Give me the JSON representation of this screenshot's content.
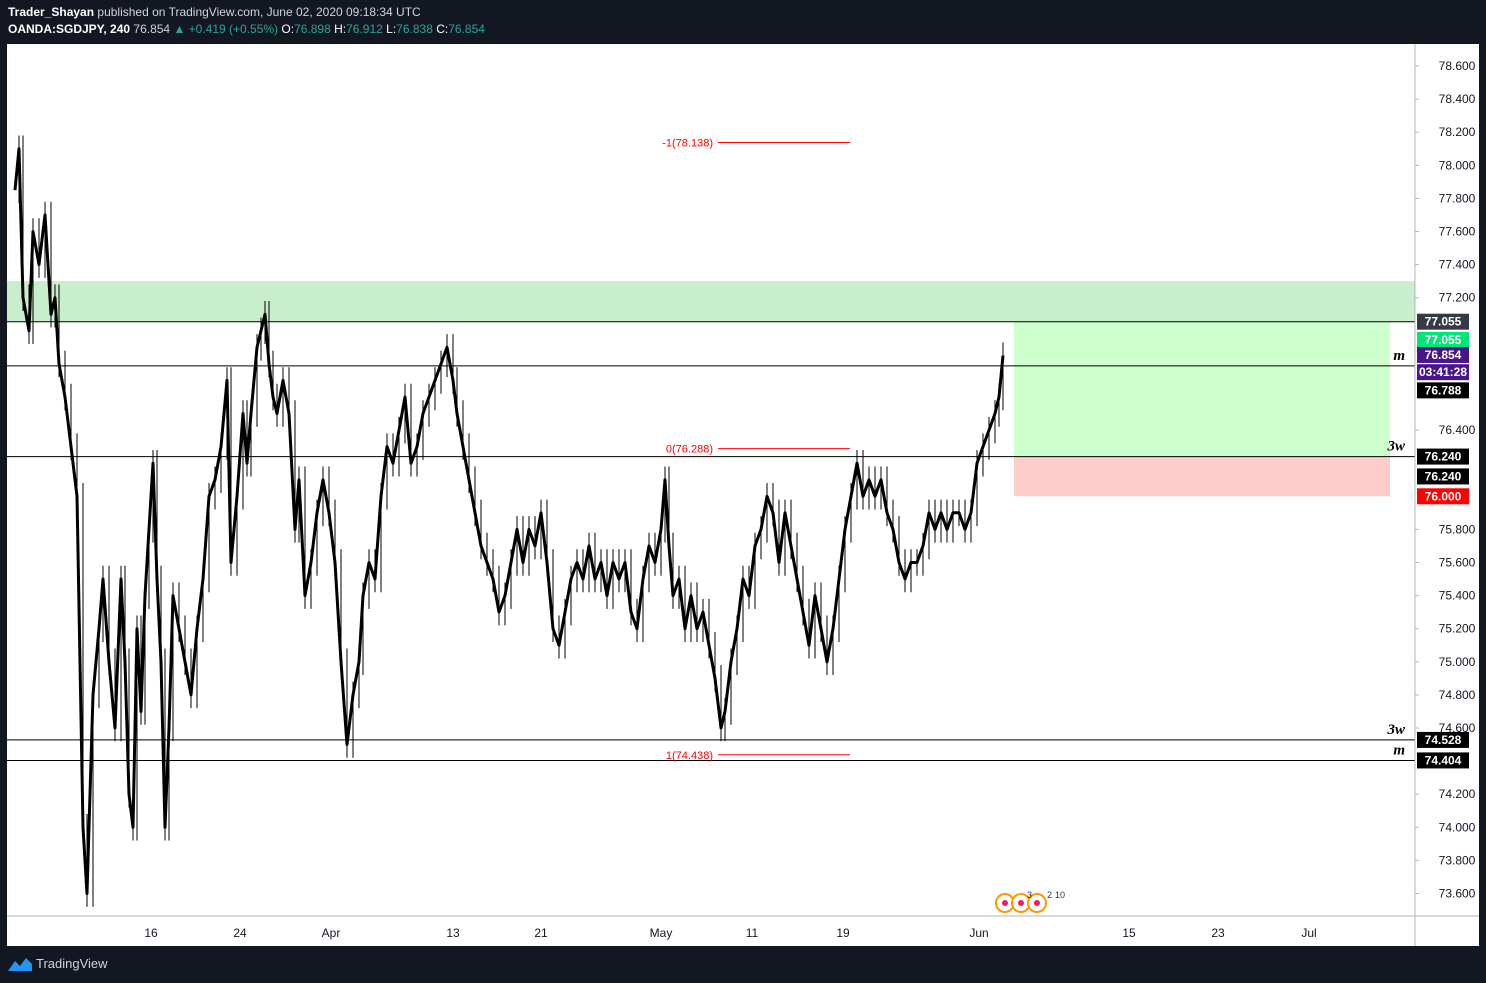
{
  "header": {
    "author": "Trader_Shayan",
    "published": "published on TradingView.com, June 02, 2020 09:18:34 UTC",
    "symbol": "OANDA:SGDJPY, 240",
    "last": "76.854",
    "change": "▲ +0.419 (+0.55%)",
    "o_label": "O:",
    "o_value": "76.898",
    "h_label": "H:",
    "h_value": "76.912",
    "l_label": "L:",
    "l_value": "76.838",
    "c_label": "C:",
    "c_value": "76.854"
  },
  "footer": {
    "brand": "TradingView"
  },
  "chart_data": {
    "type": "candlestick",
    "symbol": "OANDA:SGDJPY",
    "interval": "240",
    "y_ticks": [
      "73.600",
      "73.800",
      "74.000",
      "74.200",
      "74.600",
      "74.800",
      "75.000",
      "75.200",
      "75.400",
      "75.600",
      "75.800",
      "76.400",
      "77.200",
      "77.400",
      "77.600",
      "77.800",
      "78.000",
      "78.200",
      "78.400",
      "78.600"
    ],
    "x_ticks": [
      "16",
      "24",
      "Apr",
      "13",
      "21",
      "May",
      "11",
      "19",
      "Jun",
      "15",
      "23",
      "Jul"
    ],
    "price_path": [
      [
        8,
        77.85
      ],
      [
        12,
        78.1
      ],
      [
        16,
        77.2
      ],
      [
        22,
        77.0
      ],
      [
        26,
        77.6
      ],
      [
        32,
        77.4
      ],
      [
        38,
        77.7
      ],
      [
        44,
        77.1
      ],
      [
        48,
        77.2
      ],
      [
        52,
        76.8
      ],
      [
        58,
        76.6
      ],
      [
        64,
        76.3
      ],
      [
        70,
        76.0
      ],
      [
        76,
        74.0
      ],
      [
        80,
        73.6
      ],
      [
        86,
        74.8
      ],
      [
        92,
        75.2
      ],
      [
        96,
        75.5
      ],
      [
        102,
        75.0
      ],
      [
        108,
        74.6
      ],
      [
        114,
        75.5
      ],
      [
        118,
        75.0
      ],
      [
        122,
        74.2
      ],
      [
        126,
        74.0
      ],
      [
        130,
        75.2
      ],
      [
        134,
        74.7
      ],
      [
        138,
        75.4
      ],
      [
        142,
        75.8
      ],
      [
        146,
        76.2
      ],
      [
        150,
        75.5
      ],
      [
        154,
        75.0
      ],
      [
        158,
        74.0
      ],
      [
        162,
        74.6
      ],
      [
        166,
        75.4
      ],
      [
        172,
        75.2
      ],
      [
        178,
        75.0
      ],
      [
        184,
        74.8
      ],
      [
        190,
        75.2
      ],
      [
        196,
        75.5
      ],
      [
        202,
        76.0
      ],
      [
        208,
        76.1
      ],
      [
        214,
        76.3
      ],
      [
        220,
        76.7
      ],
      [
        224,
        75.6
      ],
      [
        230,
        76.0
      ],
      [
        236,
        76.5
      ],
      [
        240,
        76.2
      ],
      [
        244,
        76.5
      ],
      [
        250,
        76.9
      ],
      [
        254,
        77.0
      ],
      [
        258,
        77.1
      ],
      [
        262,
        76.8
      ],
      [
        266,
        76.6
      ],
      [
        270,
        76.5
      ],
      [
        276,
        76.7
      ],
      [
        282,
        76.5
      ],
      [
        288,
        75.8
      ],
      [
        292,
        76.1
      ],
      [
        298,
        75.4
      ],
      [
        304,
        75.6
      ],
      [
        310,
        75.9
      ],
      [
        316,
        76.1
      ],
      [
        322,
        75.9
      ],
      [
        328,
        75.6
      ],
      [
        334,
        75.0
      ],
      [
        340,
        74.5
      ],
      [
        346,
        74.8
      ],
      [
        352,
        75.0
      ],
      [
        356,
        75.4
      ],
      [
        362,
        75.6
      ],
      [
        368,
        75.5
      ],
      [
        374,
        76.0
      ],
      [
        380,
        76.3
      ],
      [
        386,
        76.2
      ],
      [
        392,
        76.4
      ],
      [
        398,
        76.6
      ],
      [
        404,
        76.2
      ],
      [
        410,
        76.3
      ],
      [
        416,
        76.5
      ],
      [
        422,
        76.6
      ],
      [
        428,
        76.7
      ],
      [
        434,
        76.8
      ],
      [
        440,
        76.9
      ],
      [
        446,
        76.7
      ],
      [
        450,
        76.5
      ],
      [
        456,
        76.3
      ],
      [
        462,
        76.1
      ],
      [
        468,
        75.9
      ],
      [
        474,
        75.7
      ],
      [
        480,
        75.6
      ],
      [
        486,
        75.5
      ],
      [
        492,
        75.3
      ],
      [
        498,
        75.4
      ],
      [
        504,
        75.6
      ],
      [
        510,
        75.8
      ],
      [
        516,
        75.6
      ],
      [
        522,
        75.8
      ],
      [
        528,
        75.7
      ],
      [
        534,
        75.9
      ],
      [
        540,
        75.6
      ],
      [
        546,
        75.2
      ],
      [
        552,
        75.1
      ],
      [
        558,
        75.3
      ],
      [
        564,
        75.5
      ],
      [
        570,
        75.6
      ],
      [
        576,
        75.5
      ],
      [
        582,
        75.7
      ],
      [
        588,
        75.5
      ],
      [
        594,
        75.6
      ],
      [
        600,
        75.4
      ],
      [
        606,
        75.6
      ],
      [
        612,
        75.5
      ],
      [
        618,
        75.6
      ],
      [
        624,
        75.3
      ],
      [
        630,
        75.2
      ],
      [
        636,
        75.5
      ],
      [
        642,
        75.7
      ],
      [
        648,
        75.6
      ],
      [
        654,
        75.8
      ],
      [
        658,
        76.1
      ],
      [
        662,
        75.7
      ],
      [
        666,
        75.4
      ],
      [
        672,
        75.5
      ],
      [
        678,
        75.2
      ],
      [
        684,
        75.4
      ],
      [
        690,
        75.2
      ],
      [
        696,
        75.3
      ],
      [
        702,
        75.1
      ],
      [
        708,
        74.9
      ],
      [
        714,
        74.6
      ],
      [
        718,
        74.7
      ],
      [
        724,
        75.0
      ],
      [
        730,
        75.2
      ],
      [
        736,
        75.5
      ],
      [
        742,
        75.4
      ],
      [
        748,
        75.7
      ],
      [
        754,
        75.8
      ],
      [
        760,
        76.0
      ],
      [
        766,
        75.9
      ],
      [
        772,
        75.6
      ],
      [
        778,
        75.9
      ],
      [
        784,
        75.7
      ],
      [
        790,
        75.5
      ],
      [
        796,
        75.3
      ],
      [
        802,
        75.1
      ],
      [
        808,
        75.4
      ],
      [
        814,
        75.2
      ],
      [
        820,
        75.0
      ],
      [
        826,
        75.2
      ],
      [
        832,
        75.5
      ],
      [
        838,
        75.8
      ],
      [
        844,
        76.0
      ],
      [
        850,
        76.2
      ],
      [
        856,
        76.0
      ],
      [
        862,
        76.1
      ],
      [
        868,
        76.0
      ],
      [
        874,
        76.1
      ],
      [
        880,
        75.9
      ],
      [
        886,
        75.8
      ],
      [
        892,
        75.6
      ],
      [
        898,
        75.5
      ],
      [
        904,
        75.6
      ],
      [
        910,
        75.6
      ],
      [
        916,
        75.7
      ],
      [
        922,
        75.9
      ],
      [
        928,
        75.8
      ],
      [
        934,
        75.9
      ],
      [
        940,
        75.8
      ],
      [
        946,
        75.9
      ],
      [
        952,
        75.9
      ],
      [
        958,
        75.8
      ],
      [
        964,
        75.9
      ],
      [
        970,
        76.2
      ],
      [
        976,
        76.3
      ],
      [
        982,
        76.4
      ],
      [
        988,
        76.5
      ],
      [
        992,
        76.6
      ],
      [
        996,
        76.85
      ]
    ],
    "horizontal_levels": [
      {
        "price": 77.055,
        "label": "77.055"
      },
      {
        "price": 76.788,
        "label": "76.788",
        "tag": "m"
      },
      {
        "price": 76.24,
        "label": "76.240",
        "tag": "3w"
      },
      {
        "price": 74.528,
        "label": "74.528",
        "tag": "3w"
      },
      {
        "price": 74.404,
        "label": "74.404",
        "tag": "m"
      }
    ],
    "zone": {
      "from": 77.055,
      "to": 77.3
    },
    "position": {
      "entry": 76.24,
      "target": 77.055,
      "stop": 76.0
    },
    "fib": [
      {
        "text": "-1(78.138)",
        "price": 78.138
      },
      {
        "text": "0(76.288)",
        "price": 76.288
      },
      {
        "text": "1(74.438)",
        "price": 74.438
      }
    ],
    "price_labels": [
      {
        "text": "77.055",
        "price": 77.055,
        "bg": "#363a45",
        "fg": "#ffffff"
      },
      {
        "text": "77.055",
        "price": 76.945,
        "bg": "#00e676",
        "fg": "#ffffff"
      },
      {
        "text": "76.854",
        "price": 76.854,
        "bg": "#4a148c",
        "fg": "#ffffff"
      },
      {
        "text": "03:41:28",
        "price": 76.75,
        "bg": "#4a148c",
        "fg": "#ffffff"
      },
      {
        "text": "76.788",
        "price": 76.64,
        "bg": "#000000",
        "fg": "#ffffff"
      },
      {
        "text": "76.240",
        "price": 76.24,
        "bg": "#000000",
        "fg": "#ffffff"
      },
      {
        "text": "76.240",
        "price": 76.12,
        "bg": "#000000",
        "fg": "#ffffff"
      },
      {
        "text": "76.000",
        "price": 76.0,
        "bg": "#ff0000",
        "fg": "#ffffff"
      },
      {
        "text": "74.528",
        "price": 74.528,
        "bg": "#000000",
        "fg": "#ffffff"
      },
      {
        "text": "74.404",
        "price": 74.404,
        "bg": "#000000",
        "fg": "#ffffff"
      }
    ],
    "events": [
      "3",
      "2",
      "10"
    ],
    "colors": {
      "candle": "#000000",
      "zone": "#c8eecb",
      "target": "#ccffcc",
      "stop": "#ffcccc",
      "fib": "#ff0000",
      "axis_text": "#131722"
    }
  }
}
